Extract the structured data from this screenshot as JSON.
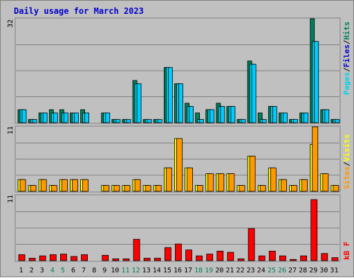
{
  "page": {
    "title": "Daily usage for March 2023"
  },
  "legend": {
    "pages": "Pages",
    "files": "Files",
    "hits": "Hits",
    "sites": "Sites",
    "visits": "Visits",
    "kbf": "kB F",
    "sep": "/"
  },
  "colors": {
    "hits": "#00805c",
    "files": "#00ccff",
    "pages": "#00d4e8",
    "visits": "#ffff00",
    "sites": "#ff9900",
    "kbf": "#ff0000",
    "panel": "#c0c0c0",
    "grid": "#808080",
    "weekend": "#00805c"
  },
  "chart_data": [
    {
      "type": "bar",
      "title": "Daily usage for March 2023",
      "xlabel": "",
      "ylabel": "",
      "categories": [
        "1",
        "2",
        "3",
        "4",
        "5",
        "6",
        "7",
        "8",
        "9",
        "10",
        "11",
        "12",
        "13",
        "14",
        "15",
        "16",
        "17",
        "18",
        "19",
        "20",
        "21",
        "22",
        "23",
        "24",
        "25",
        "26",
        "27",
        "28",
        "29",
        "30",
        "31"
      ],
      "weekend_days": [
        4,
        5,
        11,
        12,
        18,
        19,
        25,
        26
      ],
      "ymax_label": "32",
      "ylim": [
        0,
        32
      ],
      "series": [
        {
          "name": "Hits",
          "values": [
            4,
            1,
            3,
            4,
            4,
            3,
            4,
            0,
            3,
            1,
            1,
            13,
            1,
            1,
            17,
            12,
            6,
            3,
            4,
            6,
            5,
            1,
            19,
            3,
            5,
            3,
            1,
            3,
            32,
            4,
            1
          ]
        },
        {
          "name": "Files",
          "values": [
            4,
            1,
            3,
            3,
            3,
            3,
            3,
            0,
            3,
            1,
            1,
            12,
            1,
            1,
            17,
            12,
            5,
            1,
            4,
            5,
            5,
            1,
            18,
            1,
            5,
            3,
            1,
            3,
            25,
            4,
            1
          ]
        },
        {
          "name": "Pages",
          "values": [
            4,
            1,
            3,
            3,
            3,
            3,
            3,
            0,
            3,
            1,
            1,
            12,
            1,
            1,
            17,
            12,
            5,
            1,
            4,
            5,
            5,
            1,
            18,
            1,
            5,
            3,
            1,
            3,
            25,
            4,
            1
          ]
        }
      ]
    },
    {
      "type": "bar",
      "ymax_label": "11",
      "ylim": [
        0,
        11
      ],
      "series": [
        {
          "name": "Visits",
          "values": [
            2,
            1,
            2,
            1,
            2,
            2,
            2,
            0,
            1,
            1,
            1,
            2,
            1,
            1,
            4,
            9,
            4,
            1,
            3,
            3,
            3,
            1,
            6,
            1,
            4,
            2,
            1,
            2,
            8,
            3,
            1
          ]
        },
        {
          "name": "Sites",
          "values": [
            2,
            1,
            2,
            1,
            2,
            2,
            2,
            0,
            1,
            1,
            1,
            2,
            1,
            1,
            4,
            9,
            4,
            1,
            3,
            3,
            3,
            1,
            6,
            1,
            4,
            2,
            1,
            2,
            11,
            3,
            1
          ]
        }
      ]
    },
    {
      "type": "bar",
      "ymax_label": "11",
      "ylim": [
        0,
        11
      ],
      "series": [
        {
          "name": "kB F",
          "values": [
            1,
            0.4,
            0.8,
            1,
            1.1,
            0.7,
            1,
            0,
            0.9,
            0.3,
            0.3,
            3.6,
            0.4,
            0.4,
            2.2,
            2.8,
            1.8,
            0.8,
            1.1,
            1.6,
            1.4,
            0.3,
            5.4,
            0.8,
            1.6,
            0.8,
            0.2,
            0.8,
            10.3,
            1.2,
            0.5
          ]
        }
      ]
    }
  ]
}
